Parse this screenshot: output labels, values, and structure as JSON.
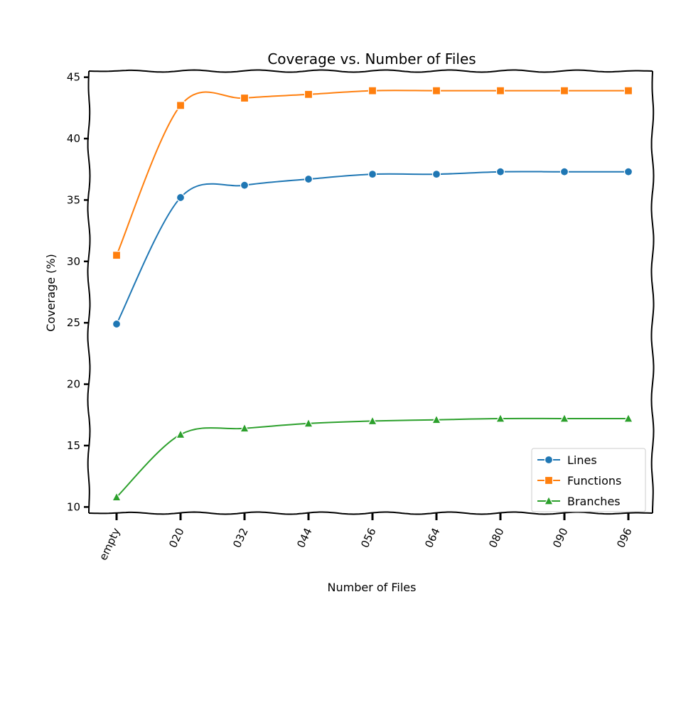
{
  "chart_data": {
    "type": "line",
    "title": "Coverage vs. Number of Files",
    "xlabel": "Number of Files",
    "ylabel": "Coverage (%)",
    "categories": [
      "empty",
      "020",
      "032",
      "044",
      "056",
      "064",
      "080",
      "090",
      "096"
    ],
    "ylim": [
      9.5,
      45.5
    ],
    "yticks": [
      10,
      15,
      20,
      25,
      30,
      35,
      40,
      45
    ],
    "grid": false,
    "legend_position": "lower-right",
    "series": [
      {
        "name": "Lines",
        "color": "#1f77b4",
        "marker": "circle",
        "values": [
          24.9,
          35.2,
          36.2,
          36.7,
          37.1,
          37.1,
          37.3,
          37.3,
          37.3
        ]
      },
      {
        "name": "Functions",
        "color": "#ff7f0e",
        "marker": "square",
        "values": [
          30.5,
          42.7,
          43.3,
          43.6,
          43.9,
          43.9,
          43.9,
          43.9,
          43.9
        ]
      },
      {
        "name": "Branches",
        "color": "#2ca02c",
        "marker": "triangle",
        "values": [
          10.8,
          15.9,
          16.4,
          16.8,
          17.0,
          17.1,
          17.2,
          17.2,
          17.2
        ]
      }
    ]
  }
}
